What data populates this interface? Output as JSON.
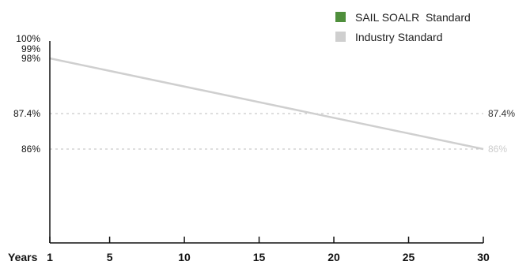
{
  "chart_data": {
    "type": "line",
    "xlabel": "Years",
    "x_ticks": [
      "1",
      "5",
      "10",
      "15",
      "20",
      "25",
      "30"
    ],
    "y_ticks": [
      "100%",
      "99%",
      "98%",
      "87.4%",
      "86%"
    ],
    "xlim": [
      1,
      30
    ],
    "series": [
      {
        "name": "SAIL SOALR  Standard",
        "color": "#4f8f3c",
        "x": [],
        "y": []
      },
      {
        "name": "Industry Standard",
        "color": "#cfcfcf",
        "x": [
          1,
          30
        ],
        "y": [
          98,
          86
        ]
      }
    ],
    "reference_lines": [
      {
        "value": 87.4,
        "label": "87.4%",
        "label_color": "#333333"
      },
      {
        "value": 86,
        "label": "86%",
        "label_color": "#cccccc"
      }
    ],
    "legend_position": "top-right",
    "grid": false
  }
}
